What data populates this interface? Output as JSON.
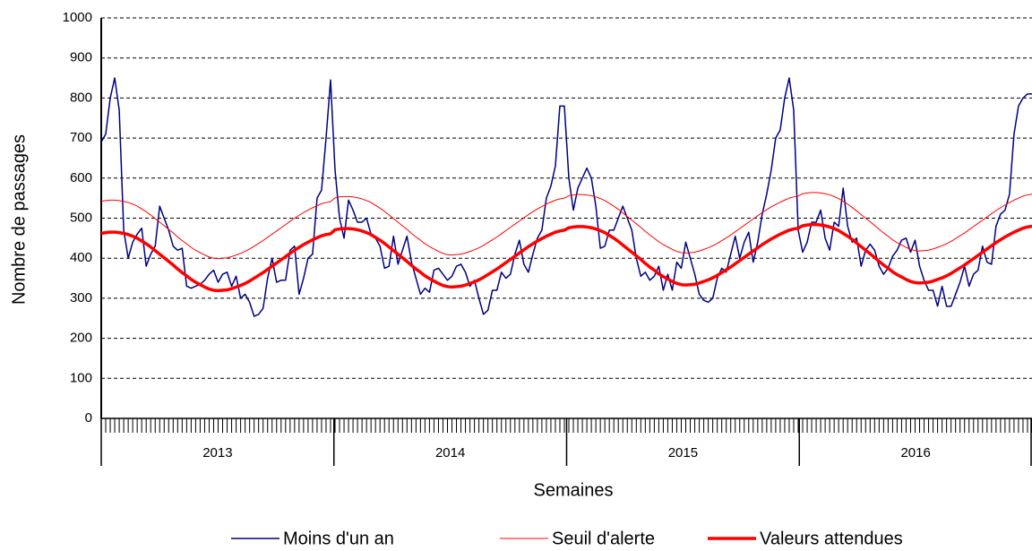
{
  "chart_data": {
    "type": "line",
    "y_label": "Nombre de passages",
    "x_label": "Semaines",
    "categories": [
      "2013",
      "2013",
      "2013",
      "2013",
      "2013",
      "2013",
      "2013",
      "2013",
      "2013",
      "2013",
      "2013",
      "2013",
      "2013",
      "2013",
      "2013",
      "2013",
      "2013",
      "2013",
      "2013",
      "2013",
      "2013",
      "2013",
      "2013",
      "2013",
      "2013",
      "2013",
      "2013",
      "2013",
      "2013",
      "2013",
      "2013",
      "2013",
      "2013",
      "2013",
      "2013",
      "2013",
      "2013",
      "2013",
      "2013",
      "2013",
      "2013",
      "2013",
      "2013",
      "2013",
      "2013",
      "2013",
      "2013",
      "2013",
      "2013",
      "2013",
      "2013",
      "2013",
      "2014",
      "2014",
      "2014",
      "2014",
      "2014",
      "2014",
      "2014",
      "2014",
      "2014",
      "2014",
      "2014",
      "2014",
      "2014",
      "2014",
      "2014",
      "2014",
      "2014",
      "2014",
      "2014",
      "2014",
      "2014",
      "2014",
      "2014",
      "2014",
      "2014",
      "2014",
      "2014",
      "2014",
      "2014",
      "2014",
      "2014",
      "2014",
      "2014",
      "2014",
      "2014",
      "2014",
      "2014",
      "2014",
      "2014",
      "2014",
      "2014",
      "2014",
      "2014",
      "2014",
      "2014",
      "2014",
      "2014",
      "2014",
      "2014",
      "2014",
      "2014",
      "2014",
      "2015",
      "2015",
      "2015",
      "2015",
      "2015",
      "2015",
      "2015",
      "2015",
      "2015",
      "2015",
      "2015",
      "2015",
      "2015",
      "2015",
      "2015",
      "2015",
      "2015",
      "2015",
      "2015",
      "2015",
      "2015",
      "2015",
      "2015",
      "2015",
      "2015",
      "2015",
      "2015",
      "2015",
      "2015",
      "2015",
      "2015",
      "2015",
      "2015",
      "2015",
      "2015",
      "2015",
      "2015",
      "2015",
      "2015",
      "2015",
      "2015",
      "2015",
      "2015",
      "2015",
      "2015",
      "2015",
      "2015",
      "2015",
      "2015",
      "2015",
      "2015",
      "2015",
      "2016",
      "2016",
      "2016",
      "2016",
      "2016",
      "2016",
      "2016",
      "2016",
      "2016",
      "2016",
      "2016",
      "2016",
      "2016",
      "2016",
      "2016",
      "2016",
      "2016",
      "2016",
      "2016",
      "2016",
      "2016",
      "2016",
      "2016",
      "2016",
      "2016",
      "2016",
      "2016",
      "2016",
      "2016",
      "2016",
      "2016",
      "2016",
      "2016",
      "2016",
      "2016",
      "2016",
      "2016",
      "2016",
      "2016",
      "2016",
      "2016",
      "2016",
      "2016",
      "2016",
      "2016",
      "2016",
      "2016",
      "2016",
      "2016",
      "2016",
      "2016",
      "2016"
    ],
    "series": [
      {
        "name": "Moins d'un an",
        "color": "#000080",
        "width": 1.5,
        "values": [
          690,
          710,
          800,
          850,
          770,
          470,
          400,
          440,
          460,
          475,
          380,
          410,
          430,
          530,
          500,
          470,
          430,
          420,
          425,
          330,
          325,
          330,
          335,
          345,
          360,
          370,
          340,
          360,
          365,
          330,
          355,
          300,
          310,
          290,
          255,
          260,
          275,
          350,
          400,
          340,
          345,
          345,
          420,
          430,
          310,
          350,
          400,
          410,
          550,
          570,
          700,
          845,
          620,
          500,
          450,
          545,
          520,
          490,
          490,
          500,
          460,
          450,
          430,
          375,
          380,
          455,
          385,
          420,
          455,
          390,
          350,
          310,
          325,
          315,
          370,
          375,
          360,
          345,
          355,
          380,
          385,
          365,
          330,
          345,
          300,
          260,
          270,
          320,
          320,
          365,
          350,
          360,
          410,
          445,
          385,
          365,
          410,
          450,
          470,
          550,
          580,
          630,
          780,
          780,
          600,
          520,
          575,
          600,
          625,
          600,
          530,
          425,
          430,
          470,
          470,
          500,
          530,
          500,
          470,
          400,
          355,
          365,
          345,
          355,
          380,
          320,
          360,
          320,
          390,
          375,
          440,
          400,
          360,
          310,
          295,
          290,
          300,
          350,
          375,
          365,
          410,
          455,
          400,
          440,
          465,
          390,
          440,
          510,
          560,
          620,
          700,
          720,
          800,
          850,
          770,
          470,
          415,
          440,
          490,
          490,
          520,
          450,
          420,
          490,
          480,
          575,
          480,
          440,
          450,
          380,
          420,
          435,
          420,
          380,
          360,
          375,
          405,
          420,
          445,
          450,
          415,
          445,
          380,
          345,
          320,
          320,
          280,
          330,
          280,
          280,
          310,
          340,
          380,
          330,
          360,
          370,
          430,
          390,
          385,
          480,
          510,
          520,
          560,
          710,
          780,
          800,
          810,
          810
        ]
      },
      {
        "name": "Seuil d'alerte",
        "color": "#ff0000",
        "width": 1,
        "values": [
          542,
          544,
          545,
          545,
          544,
          542,
          539,
          535,
          530,
          523,
          516,
          508,
          499,
          490,
          481,
          472,
          463,
          453,
          444,
          436,
          427,
          420,
          414,
          408,
          403,
          400,
          399,
          400,
          401,
          404,
          408,
          412,
          417,
          423,
          430,
          437,
          444,
          452,
          460,
          468,
          476,
          484,
          492,
          500,
          507,
          514,
          520,
          526,
          531,
          536,
          539,
          541,
          551,
          553,
          554,
          554,
          553,
          551,
          548,
          544,
          539,
          532,
          525,
          517,
          508,
          499,
          490,
          481,
          472,
          462,
          453,
          445,
          436,
          429,
          423,
          417,
          412,
          409,
          408,
          409,
          410,
          413,
          417,
          421,
          426,
          432,
          439,
          446,
          453,
          461,
          469,
          477,
          485,
          493,
          501,
          509,
          516,
          523,
          529,
          535,
          540,
          545,
          548,
          550,
          556,
          558,
          559,
          559,
          558,
          556,
          553,
          549,
          544,
          537,
          530,
          522,
          513,
          504,
          495,
          486,
          477,
          467,
          458,
          450,
          441,
          434,
          428,
          422,
          417,
          414,
          413,
          414,
          415,
          418,
          422,
          426,
          431,
          437,
          444,
          451,
          458,
          466,
          474,
          482,
          490,
          498,
          506,
          514,
          521,
          528,
          534,
          540,
          545,
          550,
          553,
          555,
          561,
          563,
          564,
          564,
          563,
          561,
          558,
          554,
          549,
          542,
          535,
          527,
          518,
          509,
          500,
          491,
          482,
          472,
          463,
          455,
          446,
          439,
          433,
          427,
          422,
          419,
          418,
          419,
          420,
          423,
          427,
          431,
          436,
          442,
          449,
          456,
          463,
          471,
          479,
          487,
          495,
          503,
          511,
          519,
          526,
          533,
          539,
          545,
          550,
          555,
          558,
          560
        ]
      },
      {
        "name": "Valeurs attendues",
        "color": "#ff0000",
        "width": 3.5,
        "values": [
          462,
          464,
          465,
          465,
          464,
          462,
          459,
          455,
          450,
          443,
          436,
          428,
          419,
          410,
          401,
          392,
          383,
          373,
          364,
          356,
          347,
          340,
          334,
          328,
          323,
          320,
          319,
          320,
          321,
          324,
          328,
          332,
          337,
          343,
          350,
          357,
          364,
          372,
          380,
          388,
          396,
          404,
          412,
          420,
          427,
          434,
          440,
          446,
          451,
          456,
          459,
          461,
          471,
          473,
          474,
          474,
          473,
          471,
          468,
          464,
          459,
          452,
          445,
          437,
          428,
          419,
          410,
          401,
          392,
          382,
          373,
          365,
          356,
          349,
          343,
          337,
          332,
          329,
          328,
          329,
          330,
          333,
          337,
          341,
          346,
          352,
          359,
          366,
          373,
          381,
          389,
          397,
          405,
          413,
          421,
          429,
          436,
          443,
          449,
          455,
          460,
          465,
          468,
          470,
          476,
          478,
          479,
          479,
          478,
          476,
          473,
          469,
          464,
          457,
          450,
          442,
          433,
          424,
          415,
          406,
          397,
          387,
          378,
          370,
          361,
          354,
          348,
          342,
          337,
          334,
          333,
          334,
          335,
          338,
          342,
          346,
          351,
          357,
          364,
          371,
          378,
          386,
          394,
          402,
          410,
          418,
          426,
          434,
          441,
          448,
          454,
          460,
          465,
          470,
          473,
          475,
          481,
          483,
          484,
          484,
          483,
          481,
          478,
          474,
          469,
          462,
          455,
          447,
          438,
          429,
          420,
          411,
          402,
          392,
          383,
          375,
          366,
          359,
          353,
          347,
          342,
          339,
          338,
          339,
          340,
          343,
          347,
          351,
          356,
          362,
          369,
          376,
          383,
          391,
          399,
          407,
          415,
          423,
          431,
          439,
          446,
          453,
          459,
          465,
          470,
          475,
          478,
          480
        ]
      }
    ],
    "ylim": [
      0,
      1000
    ],
    "yticks": [
      0,
      100,
      200,
      300,
      400,
      500,
      600,
      700,
      800,
      900,
      1000
    ],
    "grid": true
  }
}
